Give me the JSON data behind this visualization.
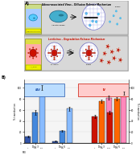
{
  "aav_label": "Adeno-associated Virus – Diffusion Release Mechanism",
  "lv_label": "Lentivirus – Degradation Release Mechanism",
  "day_labels": [
    "Day 3",
    "Day 6",
    "Day 3",
    "Day 6"
  ],
  "aav_colors": [
    "#3355aa",
    "#4488dd",
    "#88bbff"
  ],
  "lv_colors": [
    "#cc1100",
    "#ff6600",
    "#ff88bb"
  ],
  "aav_values_day3": [
    12,
    55,
    100
  ],
  "aav_values_day6": [
    4,
    22,
    62
  ],
  "lv_values_day3": [
    48,
    75,
    82
  ],
  "lv_values_day6": [
    55,
    80,
    90
  ],
  "ylabel_left": "% transduction",
  "ylabel_right": "% transduction",
  "bg_color": "#ffffff",
  "top_bg": "#bbbbbb",
  "aav_row_bg": "#d8d8d8",
  "lv_row_bg": "#d8d8d8",
  "aav_icon_bg": "#ccdd88",
  "lv_icon_bg": "#dddd44",
  "grid_color": "#cccccc",
  "error_bars": [
    2,
    4,
    4,
    1,
    2,
    4,
    3,
    3,
    3,
    3,
    3,
    3
  ],
  "aav_box_color": "#bbddff",
  "lv_box_color": "#ffcccc",
  "moi_labels": [
    "2",
    "100",
    "200"
  ]
}
